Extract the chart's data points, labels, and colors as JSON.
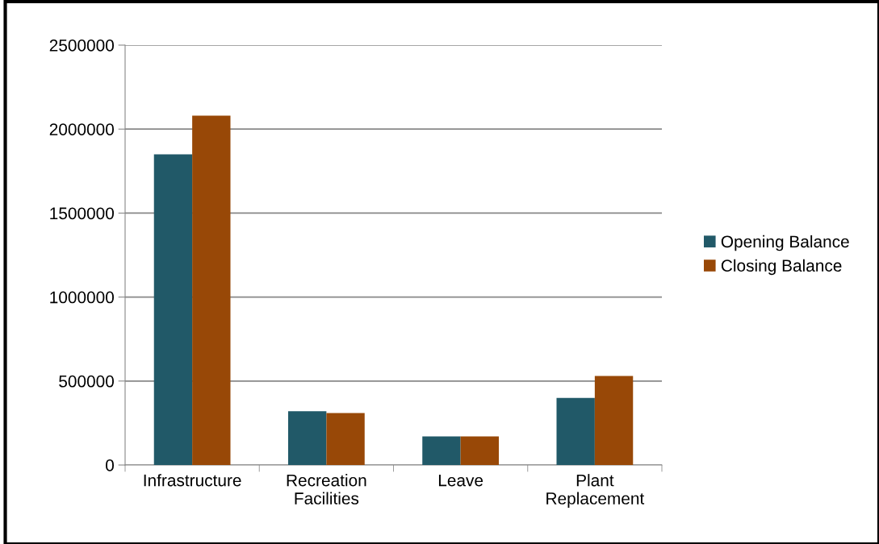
{
  "chart_data": {
    "type": "bar",
    "categories": [
      "Infrastructure",
      "Recreation\nFacilities",
      "Leave",
      "Plant\nReplacement"
    ],
    "series": [
      {
        "name": "Opening Balance",
        "color": "#215968",
        "values": [
          1850000,
          320000,
          170000,
          400000
        ]
      },
      {
        "name": "Closing Balance",
        "color": "#984807",
        "values": [
          2080000,
          310000,
          170000,
          530000
        ]
      }
    ],
    "ylim": [
      0,
      2500000
    ],
    "yticks": [
      0,
      500000,
      1000000,
      1500000,
      2000000,
      2500000
    ],
    "grid": "y",
    "legend": "right"
  }
}
